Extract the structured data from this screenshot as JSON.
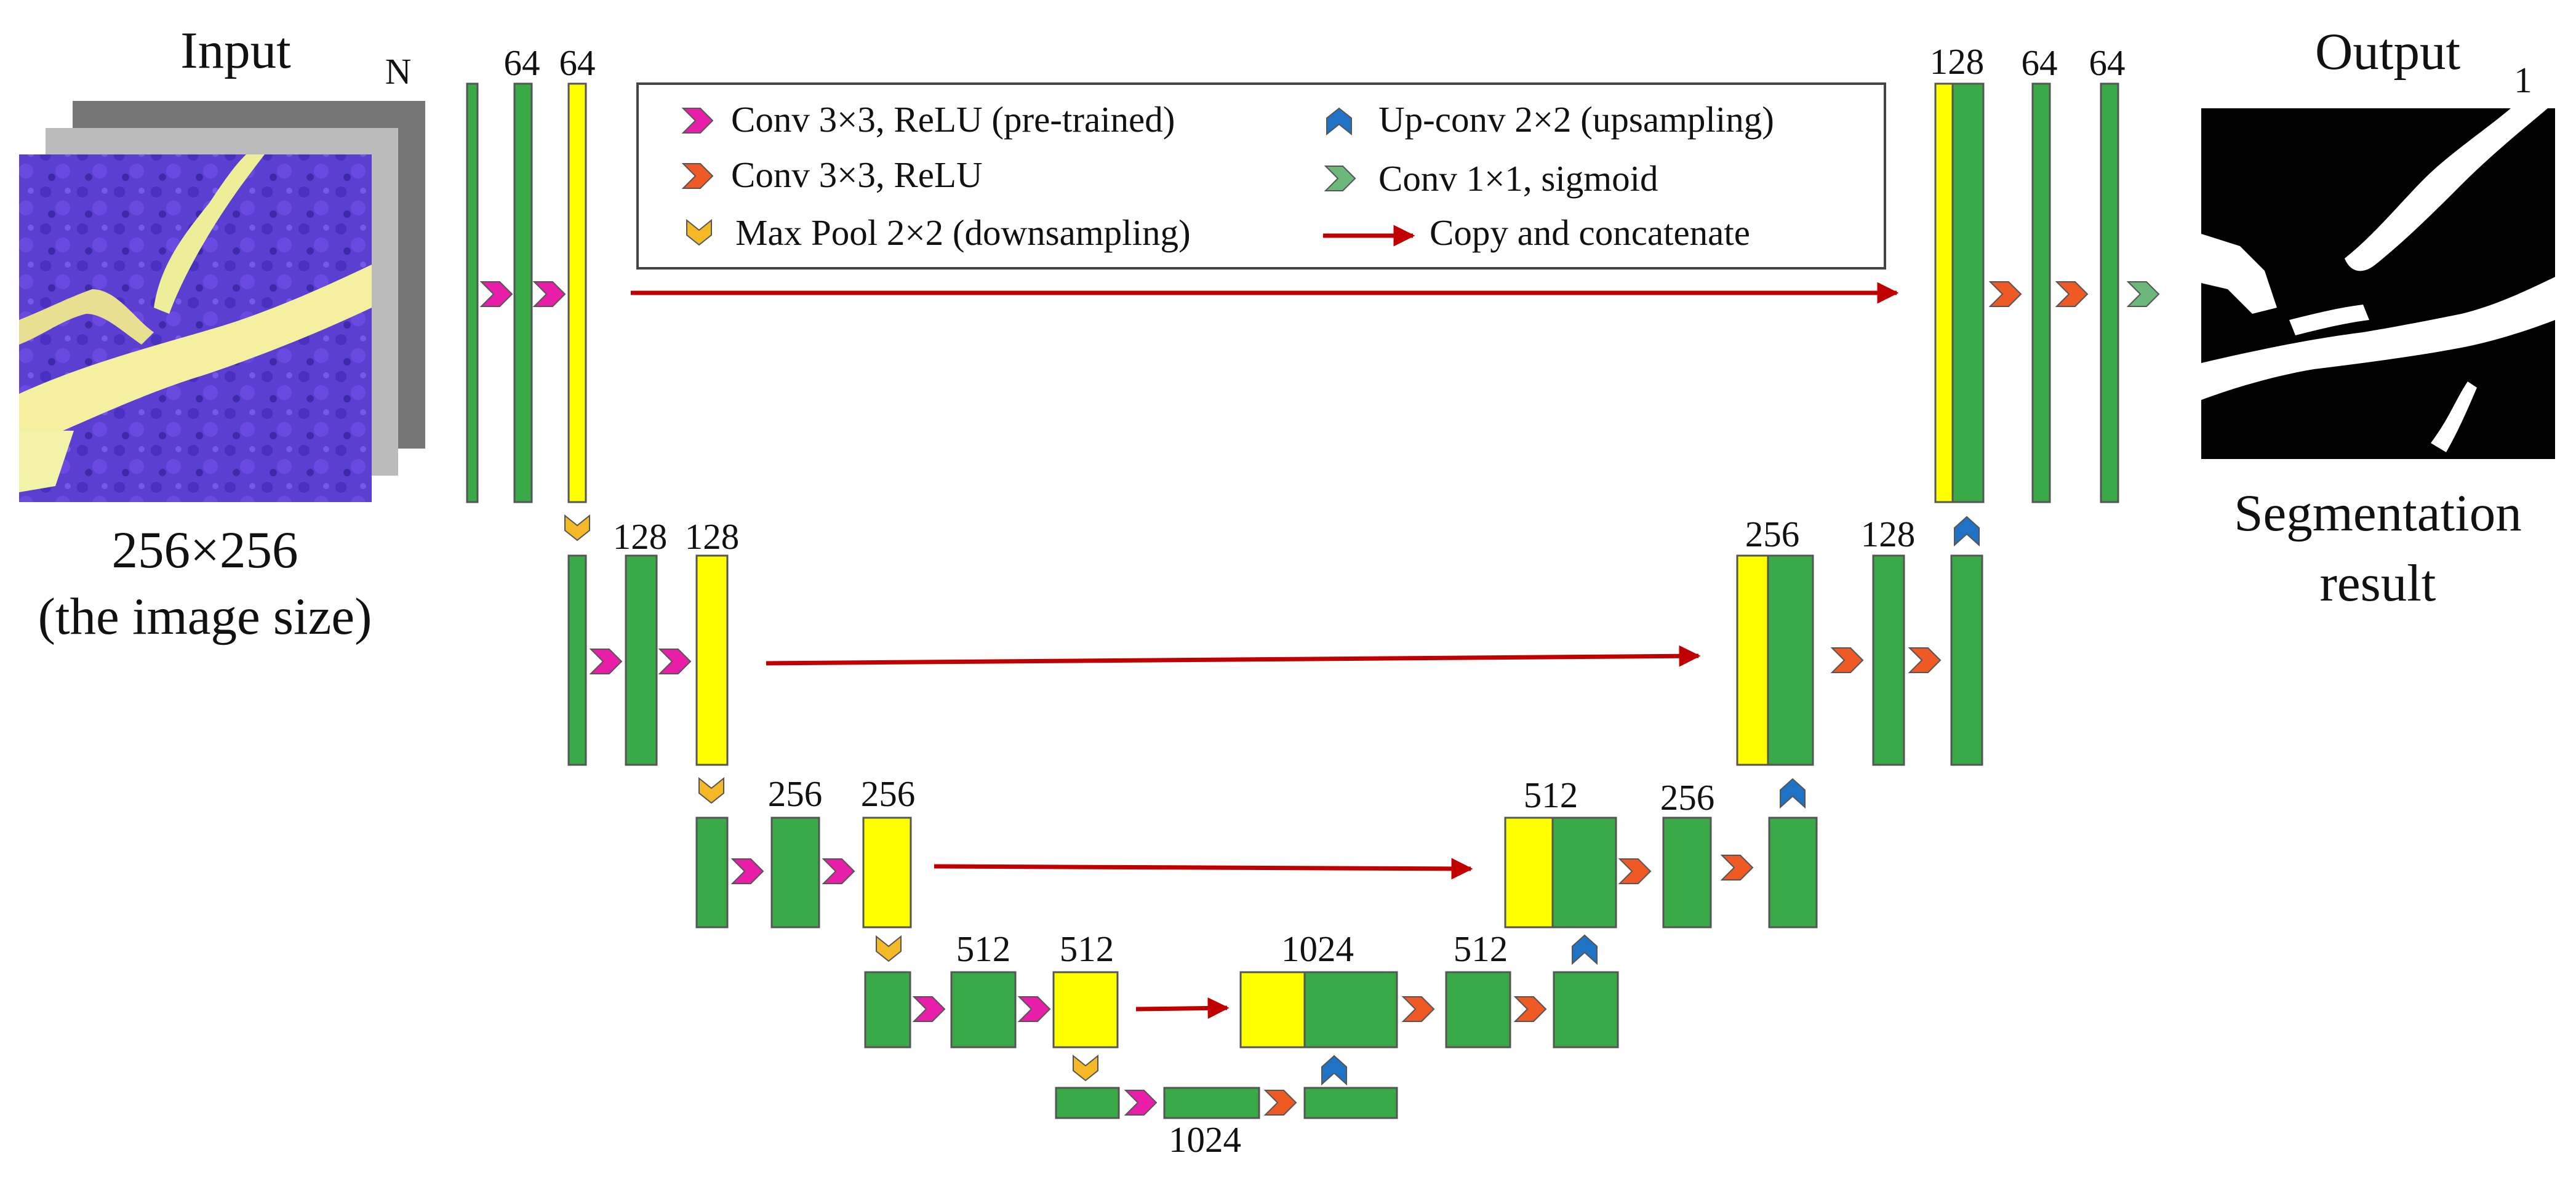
{
  "title_input": "Input",
  "title_output": "Output",
  "input_caption": [
    "256×256",
    "(the image size)"
  ],
  "output_caption": [
    "Segmentation",
    "result"
  ],
  "channel_labels": {
    "n": "N",
    "c64a": "64",
    "c64b": "64",
    "c128a": "128",
    "c128b": "128",
    "c256a": "256",
    "c256b": "256",
    "c512a": "512",
    "c512b": "512",
    "c1024_bottom": "1024",
    "d1024": "1024",
    "d512a": "512",
    "d512b": "512",
    "d256a": "256",
    "d256b": "256",
    "d128a": "128",
    "d128b": "128",
    "d64a": "64",
    "d64b": "64",
    "out1": "1"
  },
  "legend": {
    "conv_pretrained": "Conv 3×3, ReLU (pre-trained)",
    "conv": "Conv 3×3, ReLU",
    "maxpool": "Max Pool 2×2 (downsampling)",
    "upconv": "Up-conv 2×2 (upsampling)",
    "conv1x1": "Conv 1×1, sigmoid",
    "copy": "Copy and concatenate"
  },
  "colors": {
    "green": "#3aaa48",
    "yellow": "#ffff00",
    "magenta": "#e81ea8",
    "orange": "#ef5a24",
    "gold": "#f5b826",
    "blue": "#1f73c4",
    "lightgreen": "#6cb87a",
    "arrow": "#c00000",
    "outline": "#555555"
  },
  "icons": {
    "conv_pretrained": "magenta-chevron-right-icon",
    "conv": "orange-chevron-right-icon",
    "maxpool": "gold-chevron-down-icon",
    "upconv": "blue-chevron-up-icon",
    "conv1x1": "light-green-chevron-right-icon",
    "copy": "red-arrow-right-icon"
  }
}
